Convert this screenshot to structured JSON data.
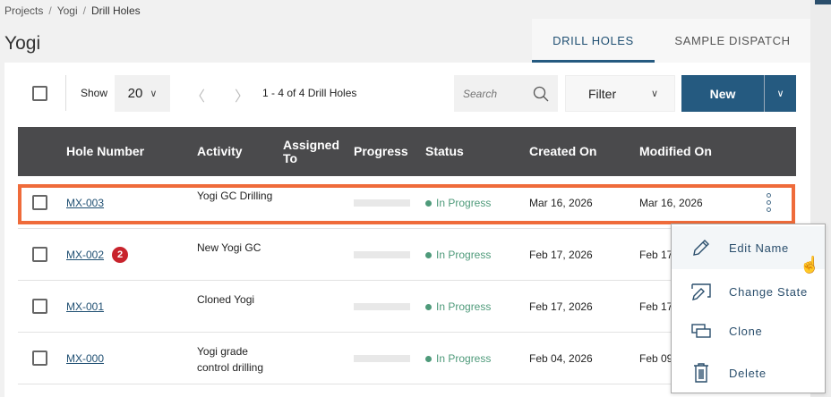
{
  "breadcrumb": [
    "Projects",
    "Yogi",
    "Drill Holes"
  ],
  "title": "Yogi",
  "tabs": [
    {
      "label": "DRILL HOLES",
      "active": true
    },
    {
      "label": "SAMPLE DISPATCH",
      "active": false
    }
  ],
  "toolbar": {
    "show_label": "Show",
    "page_size": "20",
    "count": "1 - 4 of 4 Drill Holes",
    "search_placeholder": "Search",
    "filter_label": "Filter",
    "new_label": "New"
  },
  "columns": [
    "Hole Number",
    "Activity",
    "Assigned To",
    "Progress",
    "Status",
    "Created On",
    "Modified On"
  ],
  "rows": [
    {
      "hole": "MX-003",
      "badge": null,
      "activity": "Yogi GC Drilling",
      "assigned": "",
      "progress": 0,
      "status": "In Progress",
      "created": "Mar 16, 2026",
      "modified": "Mar 16, 2026"
    },
    {
      "hole": "MX-002",
      "badge": "2",
      "activity": "New Yogi GC",
      "assigned": "",
      "progress": 0,
      "status": "In Progress",
      "created": "Feb 17, 2026",
      "modified": "Feb 17"
    },
    {
      "hole": "MX-001",
      "badge": null,
      "activity": "Cloned Yogi",
      "assigned": "",
      "progress": 0,
      "status": "In Progress",
      "created": "Feb 17, 2026",
      "modified": "Feb 17"
    },
    {
      "hole": "MX-000",
      "badge": null,
      "activity": "Yogi grade control drilling",
      "assigned": "",
      "progress": 0,
      "status": "In Progress",
      "created": "Feb 04, 2026",
      "modified": "Feb 09"
    }
  ],
  "context_menu": [
    {
      "label": "Edit Name",
      "icon": "pencil-icon"
    },
    {
      "label": "Change State",
      "icon": "change-state-icon"
    },
    {
      "label": "Clone",
      "icon": "clone-icon"
    },
    {
      "label": "Delete",
      "icon": "trash-icon"
    }
  ],
  "colors": {
    "accent": "#255a80",
    "highlight": "#ef6b3a",
    "status": "#4e9a7a",
    "header": "#4a4a4c",
    "badge": "#c8232c"
  }
}
